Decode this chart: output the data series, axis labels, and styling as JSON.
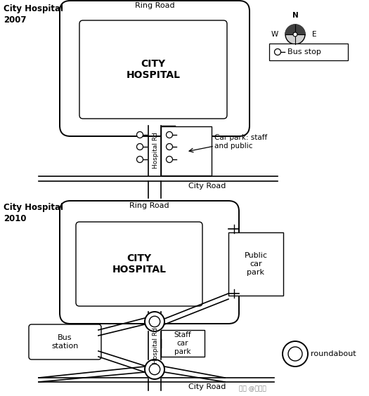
{
  "title_2007": "City Hospital\n2007",
  "title_2010": "City Hospital\n2010",
  "bg_color": "#ffffff",
  "text_color": "#000000",
  "ring_road_label": "Ring Road",
  "hospital_label1": "CITY",
  "hospital_label2": "HOSPITAL",
  "city_road_label": "City Road",
  "hospital_rd_label": "Hospital Rd",
  "car_park_label": "Car park: staff\nand public",
  "public_car_park_label": "Public\ncar\npark",
  "staff_car_park_label": "Staff\ncar\npark",
  "bus_station_label": "Bus\nstation",
  "bus_stop_legend": "Bus stop",
  "roundabout_legend": "roundabout",
  "watermark": "知乎 @郝教授"
}
